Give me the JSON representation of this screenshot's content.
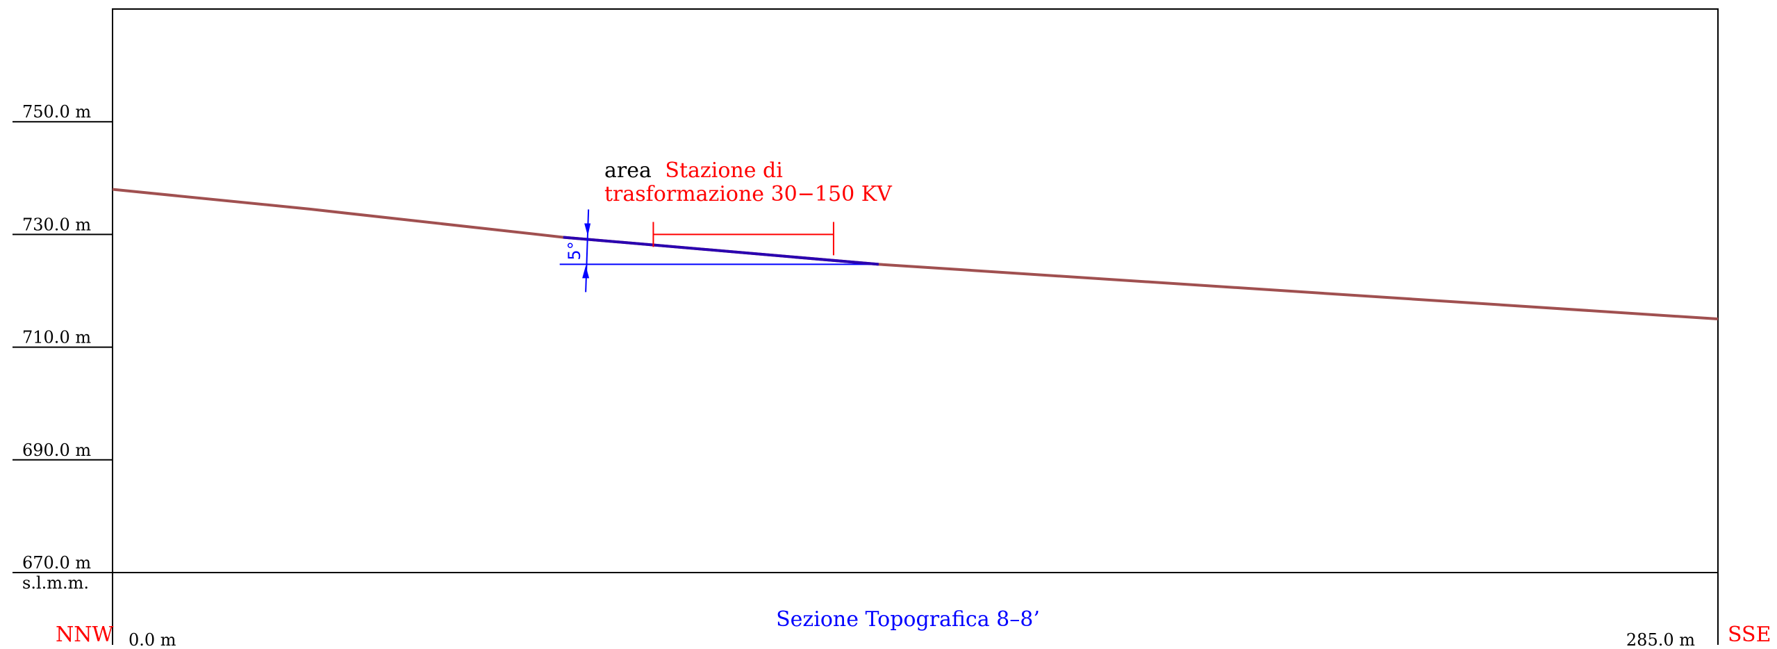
{
  "section": {
    "title": "Sezione Topografica 8–8’",
    "direction_left": "NNW",
    "direction_right": "SSE",
    "datum_label": "s.l.m.m.",
    "x_start_label": "0.0  m",
    "x_end_label": "285.0  m"
  },
  "annotation": {
    "prefix": "area",
    "line1": "Stazione di",
    "line2": "trasformazione 30−150 KV",
    "angle_label": "5°"
  },
  "chart_data": {
    "type": "line",
    "x_range": [
      0,
      285
    ],
    "y_range": [
      670,
      770
    ],
    "x_unit": "m",
    "y_unit": "m",
    "y_ticks": [
      {
        "value": 750,
        "label": "750.0  m"
      },
      {
        "value": 730,
        "label": "730.0  m"
      },
      {
        "value": 710,
        "label": "710.0  m"
      },
      {
        "value": 690,
        "label": "690.0  m"
      },
      {
        "value": 670,
        "label": "670.0  m"
      }
    ],
    "terrain_profile": {
      "x": [
        0,
        35,
        80,
        136,
        285
      ],
      "y": [
        738,
        734.5,
        729.5,
        724.7,
        715
      ]
    },
    "excavation_line": {
      "x": [
        80,
        136
      ],
      "y": [
        729.5,
        724.7
      ]
    },
    "reference_line": {
      "x": [
        80,
        136
      ],
      "y": [
        724.7,
        724.7
      ]
    },
    "station_area": {
      "x_start": 96,
      "x_end": 128,
      "y": 730
    },
    "angle_marker": {
      "x": 84,
      "y_from": 724.7,
      "y_to": 729.5
    },
    "colors": {
      "terrain": "#a05050",
      "excavation": "#2a00b0",
      "reference": "#0000ff",
      "station": "#ff0000",
      "title": "#0000ff",
      "direction": "#ff0000"
    }
  }
}
